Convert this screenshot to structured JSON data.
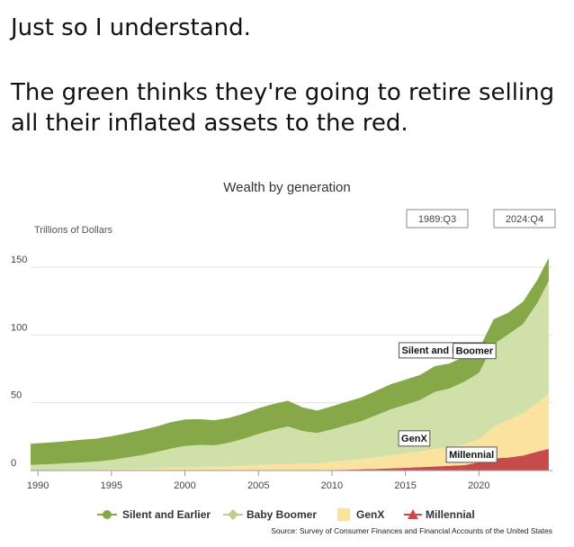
{
  "post": {
    "line1": "Just so I understand.",
    "line2": "The green thinks they're going to retire selling all their inflated assets to the red."
  },
  "chart_data": {
    "type": "area",
    "stacked": true,
    "title": "Wealth by generation",
    "ylabel": "Trillions of Dollars",
    "ylim": [
      0,
      150
    ],
    "xlim": [
      1989.5,
      2025.0
    ],
    "yticks": [
      0,
      50,
      100,
      150
    ],
    "xticks": [
      1990,
      1995,
      2000,
      2005,
      2010,
      2015,
      2020
    ],
    "range_start": "1989:Q3",
    "range_end": "2024:Q4",
    "grid": true,
    "legend_position": "bottom",
    "source": "Source: Survey of Consumer Finances and Financial Accounts of the United States",
    "x": [
      1989.5,
      1990,
      1991,
      1992,
      1993,
      1994,
      1995,
      1996,
      1997,
      1998,
      1999,
      2000,
      2001,
      2002,
      2003,
      2004,
      2005,
      2006,
      2007,
      2008,
      2009,
      2010,
      2011,
      2012,
      2013,
      2014,
      2015,
      2016,
      2017,
      2018,
      2019,
      2020,
      2021,
      2022,
      2023,
      2024,
      2024.75
    ],
    "series": [
      {
        "name": "Millennial",
        "color": "#c84b4b",
        "values": [
          0,
          0,
          0,
          0,
          0,
          0,
          0,
          0,
          0,
          0,
          0,
          0,
          0,
          0,
          0,
          0,
          0,
          0,
          0,
          0.1,
          0.2,
          0.4,
          0.6,
          0.9,
          1.2,
          1.6,
          2,
          2.5,
          3,
          3.5,
          4,
          6,
          9,
          9.5,
          11,
          14,
          16
        ]
      },
      {
        "name": "GenX",
        "color": "#fbe29f",
        "values": [
          0.2,
          0.2,
          0.3,
          0.4,
          0.5,
          0.6,
          0.8,
          1,
          1.2,
          1.5,
          2,
          2.2,
          2.4,
          2.6,
          3,
          3.5,
          4,
          4.5,
          5,
          5,
          5,
          6,
          6.8,
          7.5,
          8.5,
          9.5,
          10.5,
          11.5,
          13,
          14,
          15.5,
          17,
          23,
          28,
          31,
          36,
          41
        ]
      },
      {
        "name": "Baby Boomer",
        "color": "#cfe0a9",
        "values": [
          4,
          4.2,
          4.5,
          5,
          5.5,
          6,
          7,
          8.5,
          10,
          12,
          14,
          16,
          16.5,
          16,
          17.5,
          20,
          23,
          25.5,
          27.5,
          24,
          22.5,
          24,
          26,
          28,
          31,
          34,
          36,
          38,
          42,
          43,
          46,
          49,
          61,
          63,
          66,
          74,
          83
        ]
      },
      {
        "name": "Silent and Earlier",
        "color": "#86a848",
        "values": [
          15.5,
          15.8,
          16,
          16.3,
          16.7,
          17,
          17.5,
          18,
          18.5,
          18.8,
          19.5,
          19.5,
          19,
          18.5,
          18.3,
          18.5,
          19,
          19,
          19,
          17.5,
          16.5,
          17,
          17.3,
          17.5,
          18,
          18.5,
          18.5,
          18.5,
          19,
          18.5,
          18.5,
          17.5,
          18.5,
          16,
          16.5,
          17,
          17
        ]
      }
    ],
    "annotations": [
      {
        "text": "Silent and Earlier",
        "x": 2017.5,
        "y": 89
      },
      {
        "text": "Boomer",
        "x": 2019.7,
        "y": 88.5
      },
      {
        "text": "GenX",
        "x": 2015.6,
        "y": 24
      },
      {
        "text": "Millennial",
        "x": 2019.5,
        "y": 12
      }
    ]
  }
}
